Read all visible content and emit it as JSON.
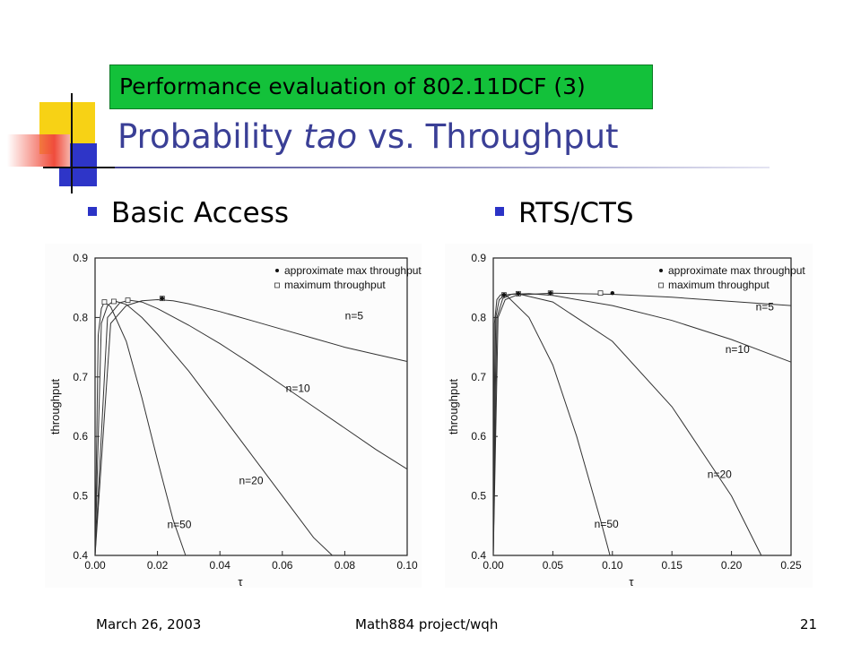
{
  "slide": {
    "section_label": "Performance evaluation of 802.11DCF (3)",
    "title_prefix": "Probability ",
    "title_italic": "tao",
    "title_suffix": " vs. Throughput",
    "bullets": [
      "Basic Access",
      "RTS/CTS"
    ],
    "footer": {
      "date": "March 26, 2003",
      "center": "Math884 project/wqh",
      "page": "21"
    },
    "colors": {
      "title": "#3a3f96",
      "label_bg": "#13c13a",
      "bullet": "#2b33c6"
    }
  },
  "chart_data": [
    {
      "type": "line",
      "panel": "Basic Access",
      "xlabel": "τ",
      "ylabel": "throughput",
      "xlim": [
        0,
        0.1
      ],
      "ylim": [
        0.4,
        0.9
      ],
      "x_ticks": [
        "0.00",
        "0.02",
        "0.04",
        "0.06",
        "0.08",
        "0.10"
      ],
      "y_ticks": [
        "0.4",
        "0.5",
        "0.6",
        "0.7",
        "0.8",
        "0.9"
      ],
      "legend": [
        "approximate max throughput",
        "maximum throughput"
      ],
      "legend_position": "top-right",
      "series": [
        {
          "name": "n=5",
          "x": [
            0,
            0.005,
            0.01,
            0.015,
            0.02,
            0.025,
            0.03,
            0.04,
            0.05,
            0.06,
            0.07,
            0.08,
            0.09,
            0.1
          ],
          "y": [
            0.4,
            0.79,
            0.82,
            0.828,
            0.83,
            0.828,
            0.823,
            0.81,
            0.795,
            0.78,
            0.765,
            0.75,
            0.738,
            0.726
          ]
        },
        {
          "name": "n=10",
          "x": [
            0,
            0.004,
            0.008,
            0.011,
            0.015,
            0.02,
            0.03,
            0.04,
            0.05,
            0.06,
            0.07,
            0.08,
            0.09,
            0.1
          ],
          "y": [
            0.4,
            0.8,
            0.825,
            0.829,
            0.826,
            0.815,
            0.787,
            0.756,
            0.722,
            0.686,
            0.65,
            0.614,
            0.578,
            0.545
          ]
        },
        {
          "name": "n=20",
          "x": [
            0,
            0.002,
            0.004,
            0.006,
            0.01,
            0.015,
            0.02,
            0.03,
            0.04,
            0.05,
            0.06,
            0.07,
            0.076
          ],
          "y": [
            0.4,
            0.79,
            0.82,
            0.828,
            0.822,
            0.8,
            0.772,
            0.71,
            0.64,
            0.57,
            0.5,
            0.43,
            0.4
          ]
        },
        {
          "name": "n=50",
          "x": [
            0,
            0.001,
            0.002,
            0.003,
            0.005,
            0.01,
            0.015,
            0.02,
            0.025,
            0.029
          ],
          "y": [
            0.4,
            0.77,
            0.815,
            0.826,
            0.818,
            0.76,
            0.665,
            0.56,
            0.46,
            0.4
          ]
        }
      ],
      "approx_max_points": [
        [
          0.0215,
          0.832
        ]
      ],
      "max_points": [
        [
          0.003,
          0.826
        ],
        [
          0.006,
          0.827
        ],
        [
          0.0105,
          0.829
        ],
        [
          0.0215,
          0.832
        ]
      ],
      "annotations": [
        {
          "text": "n=5",
          "x": 0.083,
          "y": 0.797
        },
        {
          "text": "n=10",
          "x": 0.065,
          "y": 0.675
        },
        {
          "text": "n=20",
          "x": 0.05,
          "y": 0.52
        },
        {
          "text": "n=50",
          "x": 0.027,
          "y": 0.446
        }
      ]
    },
    {
      "type": "line",
      "panel": "RTS/CTS",
      "xlabel": "τ",
      "ylabel": "throughput",
      "xlim": [
        0,
        0.25
      ],
      "ylim": [
        0.4,
        0.9
      ],
      "x_ticks": [
        "0.00",
        "0.05",
        "0.10",
        "0.15",
        "0.20",
        "0.25"
      ],
      "y_ticks": [
        "0.4",
        "0.5",
        "0.6",
        "0.7",
        "0.8",
        "0.9"
      ],
      "legend": [
        "approximate max throughput",
        "maximum throughput"
      ],
      "legend_position": "top-right",
      "series": [
        {
          "name": "n=5",
          "x": [
            0,
            0.004,
            0.01,
            0.02,
            0.05,
            0.1,
            0.15,
            0.2,
            0.25
          ],
          "y": [
            0.4,
            0.8,
            0.83,
            0.838,
            0.841,
            0.839,
            0.834,
            0.827,
            0.82
          ]
        },
        {
          "name": "n=10",
          "x": [
            0,
            0.003,
            0.008,
            0.015,
            0.03,
            0.05,
            0.1,
            0.15,
            0.2,
            0.25
          ],
          "y": [
            0.4,
            0.8,
            0.832,
            0.839,
            0.84,
            0.837,
            0.82,
            0.795,
            0.763,
            0.725
          ]
        },
        {
          "name": "n=20",
          "x": [
            0,
            0.002,
            0.005,
            0.01,
            0.02,
            0.05,
            0.1,
            0.15,
            0.2,
            0.225
          ],
          "y": [
            0.4,
            0.8,
            0.83,
            0.838,
            0.84,
            0.826,
            0.76,
            0.65,
            0.5,
            0.4
          ]
        },
        {
          "name": "n=50",
          "x": [
            0,
            0.001,
            0.003,
            0.006,
            0.01,
            0.03,
            0.05,
            0.07,
            0.09,
            0.098
          ],
          "y": [
            0.4,
            0.79,
            0.83,
            0.838,
            0.839,
            0.8,
            0.72,
            0.6,
            0.46,
            0.4
          ]
        }
      ],
      "approx_max_points": [
        [
          0.009,
          0.838
        ],
        [
          0.021,
          0.84
        ],
        [
          0.048,
          0.841
        ],
        [
          0.1,
          0.841
        ]
      ],
      "max_points": [
        [
          0.009,
          0.838
        ],
        [
          0.021,
          0.84
        ],
        [
          0.048,
          0.841
        ],
        [
          0.09,
          0.841
        ]
      ],
      "annotations": [
        {
          "text": "n=5",
          "x": 0.228,
          "y": 0.812
        },
        {
          "text": "n=10",
          "x": 0.205,
          "y": 0.74
        },
        {
          "text": "n=20",
          "x": 0.19,
          "y": 0.53
        },
        {
          "text": "n=50",
          "x": 0.095,
          "y": 0.447
        }
      ]
    }
  ]
}
